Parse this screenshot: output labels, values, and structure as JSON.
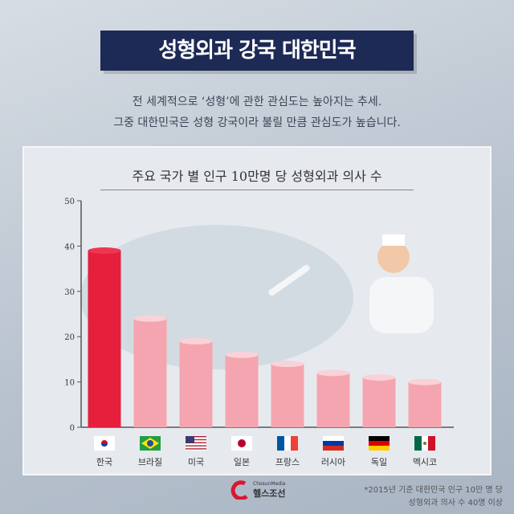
{
  "header": {
    "title": "성형외과 강국 대한민국",
    "subtitle_lines": [
      "전 세계적으로 ‘성형’에 관한 관심도는 높아지는 추세.",
      "그중 대한민국은 성형 강국이라 불릴 만큼 관심도가 높습니다."
    ]
  },
  "chart_data": {
    "type": "bar",
    "title": "주요 국가 별 인구 10만명 당 성형외과 의사 수",
    "categories": [
      "한국",
      "브라질",
      "미국",
      "일본",
      "프랑스",
      "러시아",
      "독일",
      "멕시코"
    ],
    "values": [
      39,
      24,
      19,
      16,
      14,
      12,
      11,
      10
    ],
    "ylim": [
      0,
      50
    ],
    "yticks": [
      0,
      10,
      20,
      30,
      40,
      50
    ],
    "grid": false,
    "colors": {
      "highlight": "#e51f3c",
      "default": "#f5a5af"
    },
    "flags": [
      "kr-flag-icon",
      "br-flag-icon",
      "us-flag-icon",
      "jp-flag-icon",
      "fr-flag-icon",
      "ru-flag-icon",
      "de-flag-icon",
      "mx-flag-icon"
    ]
  },
  "footer": {
    "logo_small": "ChosunMedia",
    "logo_name": "헬스조선",
    "note_lines": [
      "*2015년 기준 대한민국 인구 10만 명 당",
      "성형외과 의사 수 40명 이상"
    ]
  }
}
